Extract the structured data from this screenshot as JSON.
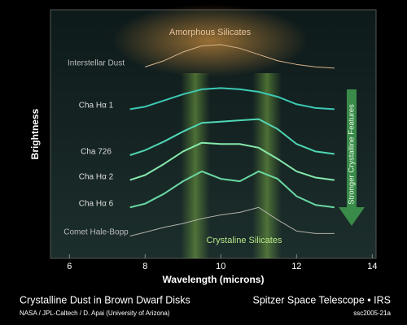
{
  "chart_data": {
    "type": "line",
    "title": "Crystalline Dust in Brown Dwarf Disks",
    "credit": "NASA / JPL-Caltech / D. Apai (University of Arizona)",
    "source": "Spitzer Space Telescope • IRS",
    "image_id": "ssc2005-21a",
    "xlabel": "Wavelength (microns)",
    "ylabel": "Brightness",
    "annotations": [
      "Amorphous Silicates",
      "Crystaline Silicates",
      "Stronger Crystalline Features"
    ],
    "x": [
      7.6,
      8,
      8.5,
      9,
      9.5,
      10,
      10.5,
      11,
      11.5,
      12,
      12.5,
      13
    ],
    "xlim": [
      5.5,
      14.1
    ],
    "xticks": [
      6,
      8,
      10,
      12,
      14
    ],
    "ylim": [
      0,
      10
    ],
    "series": [
      {
        "name": "Interstellar Dust",
        "color": "#d8b48c",
        "values": [
          null,
          7.7,
          7.95,
          8.3,
          8.55,
          8.6,
          8.45,
          8.2,
          7.95,
          7.8,
          7.7,
          7.65
        ]
      },
      {
        "name": "Cha Hα 1",
        "color": "#3cc8b4",
        "values": [
          6.0,
          6.1,
          6.35,
          6.6,
          6.8,
          6.85,
          6.8,
          6.7,
          6.5,
          6.2,
          6.05,
          6.0
        ]
      },
      {
        "name": "Cha 726",
        "color": "#4fd6b4",
        "values": [
          4.15,
          4.35,
          4.7,
          5.1,
          5.45,
          5.5,
          5.55,
          5.6,
          5.2,
          4.6,
          4.3,
          4.2
        ]
      },
      {
        "name": "Cha Hα 2",
        "color": "#86e8ac",
        "values": [
          3.15,
          3.35,
          3.8,
          4.3,
          4.65,
          4.6,
          4.6,
          4.45,
          4.0,
          3.5,
          3.25,
          3.15
        ]
      },
      {
        "name": "Cha Hα 6",
        "color": "#6ad8a4",
        "values": [
          2.05,
          2.2,
          2.6,
          3.1,
          3.5,
          3.2,
          3.1,
          3.5,
          3.2,
          2.5,
          2.15,
          2.05
        ]
      },
      {
        "name": "Comet Hale-Bopp",
        "color": "#b0b0a8",
        "values": [
          0.9,
          1.05,
          1.25,
          1.4,
          1.6,
          1.75,
          1.85,
          2.05,
          1.55,
          1.1,
          1.0,
          1.0
        ]
      }
    ]
  }
}
